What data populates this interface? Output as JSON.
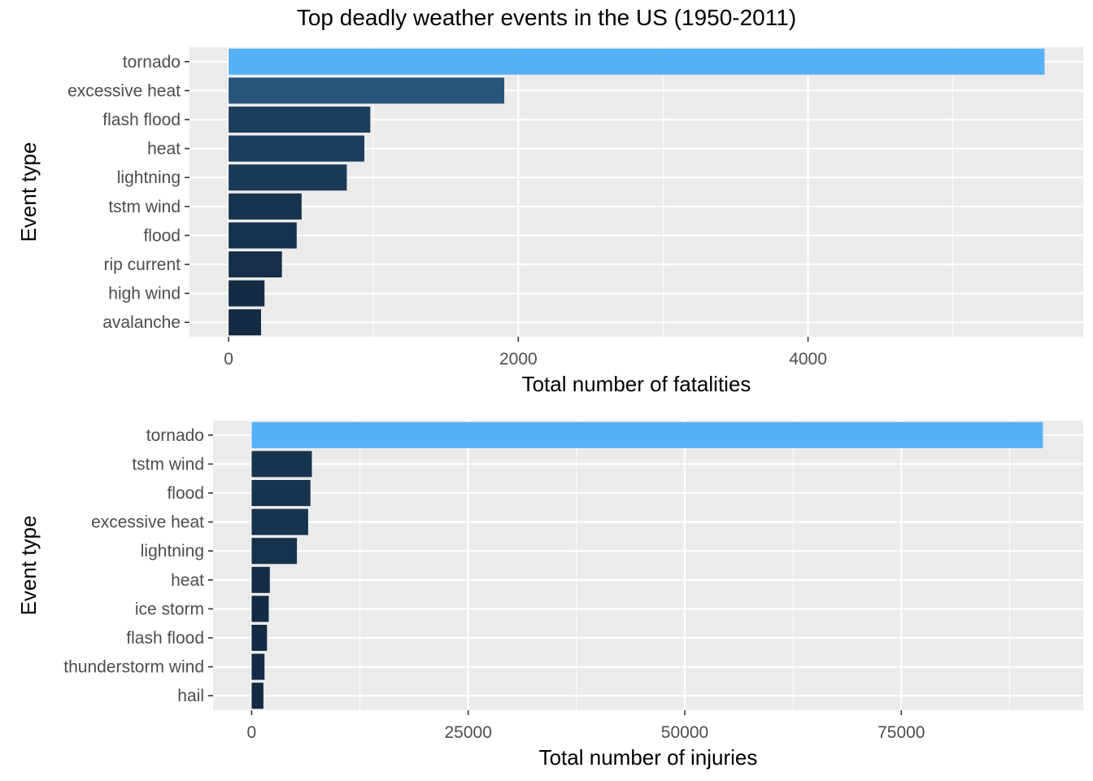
{
  "figure": {
    "title": "Top deadly weather events in the US (1950-2011)"
  },
  "colors": {
    "panel_bg": "#EBEBEB",
    "grid": "#FFFFFF",
    "tick_text": "#4D4D4D",
    "axis_title": "#000000",
    "bar_low": "#132B43",
    "bar_high": "#56B1F7"
  },
  "chart_data": [
    {
      "type": "bar",
      "orientation": "horizontal",
      "xlabel": "Total number of fatalities",
      "ylabel": "Event type",
      "categories": [
        "tornado",
        "excessive heat",
        "flash flood",
        "heat",
        "lightning",
        "tstm wind",
        "flood",
        "rip current",
        "high wind",
        "avalanche"
      ],
      "values": [
        5633,
        1903,
        978,
        937,
        816,
        504,
        470,
        368,
        248,
        224
      ],
      "xlim": [
        -270,
        5900
      ],
      "xticks": [
        0,
        2000,
        4000
      ],
      "xtick_labels": [
        "0",
        "2000",
        "4000"
      ],
      "xminor": [
        1000,
        3000,
        5000
      ],
      "grid": true,
      "fill_scale": "continuous gradient by value"
    },
    {
      "type": "bar",
      "orientation": "horizontal",
      "xlabel": "Total number of injuries",
      "ylabel": "Event type",
      "categories": [
        "tornado",
        "tstm wind",
        "flood",
        "excessive heat",
        "lightning",
        "heat",
        "ice storm",
        "flash flood",
        "thunderstorm wind",
        "hail"
      ],
      "values": [
        91346,
        6957,
        6789,
        6525,
        5230,
        2100,
        1975,
        1777,
        1488,
        1361
      ],
      "xlim": [
        -4450,
        96000
      ],
      "xticks": [
        0,
        25000,
        50000,
        75000
      ],
      "xtick_labels": [
        "0",
        "25000",
        "50000",
        "75000"
      ],
      "xminor": [
        12500,
        37500,
        62500,
        87500
      ],
      "grid": true,
      "fill_scale": "continuous gradient by value"
    }
  ]
}
